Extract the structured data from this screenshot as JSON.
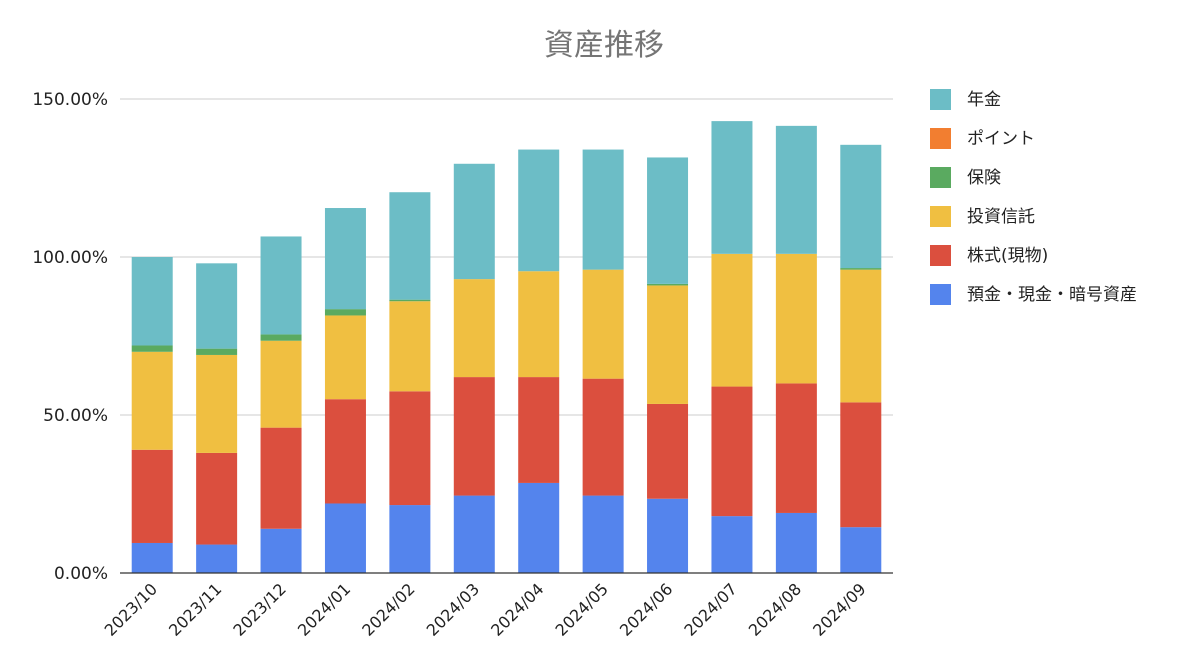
{
  "chart_data": {
    "type": "bar",
    "stacked": true,
    "title": "資産推移",
    "xlabel": "",
    "ylabel": "",
    "categories": [
      "2023/10",
      "2023/11",
      "2023/12",
      "2024/01",
      "2024/02",
      "2024/03",
      "2024/04",
      "2024/05",
      "2024/06",
      "2024/07",
      "2024/08",
      "2024/09"
    ],
    "y_ticks": [
      "0.00%",
      "50.00%",
      "100.00%",
      "150.00%"
    ],
    "ylim": [
      0,
      150
    ],
    "grid": true,
    "legend_position": "right",
    "series": [
      {
        "name": "預金・現金・暗号資産",
        "color": "#5484ed",
        "values": [
          9.5,
          9,
          14,
          22,
          21.5,
          24.5,
          28.5,
          24.5,
          23.5,
          18,
          19,
          14.5
        ]
      },
      {
        "name": "株式(現物)",
        "color": "#db4f3e",
        "values": [
          29.5,
          29,
          32,
          33,
          36,
          37.5,
          33.5,
          37,
          30,
          41,
          41,
          39.5
        ]
      },
      {
        "name": "投資信託",
        "color": "#f0bf41",
        "values": [
          31,
          31,
          27.5,
          26.5,
          28.5,
          31,
          33.5,
          34.5,
          37.5,
          42,
          41,
          42
        ]
      },
      {
        "name": "保険",
        "color": "#5aaa60",
        "values": [
          2,
          2,
          2,
          2,
          0.5,
          0,
          0,
          0,
          0.5,
          0,
          0,
          0.5
        ]
      },
      {
        "name": "ポイント",
        "color": "#f27e30",
        "values": [
          0,
          0,
          0,
          0,
          0,
          0,
          0,
          0,
          0,
          0,
          0,
          0
        ]
      },
      {
        "name": "年金",
        "color": "#6cbdc6",
        "values": [
          28,
          27,
          31,
          32,
          34,
          36.5,
          38.5,
          38,
          40,
          42,
          40.5,
          39
        ]
      }
    ],
    "legend_order": [
      "年金",
      "ポイント",
      "保険",
      "投資信託",
      "株式(現物)",
      "預金・現金・暗号資産"
    ]
  }
}
